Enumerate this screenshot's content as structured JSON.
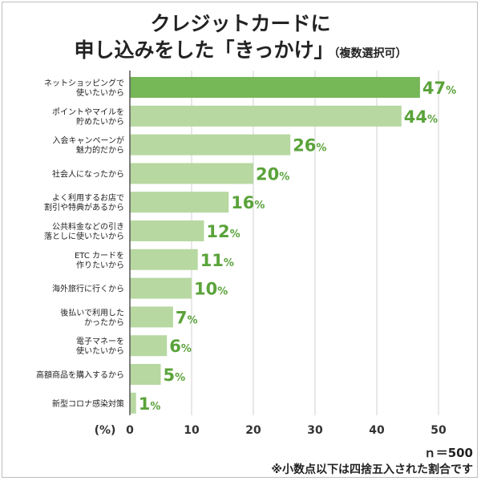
{
  "title": {
    "line1": "クレジットカードに",
    "line2": "申し込みをした「きっかけ」",
    "line2_note": "（複数選択可）"
  },
  "footer": {
    "sample_size": "ｎ＝500",
    "note": "※小数点以下は四捨五入された割合です"
  },
  "colors": {
    "highlight": "#76b758",
    "bar": "#b7d8a1",
    "label": "#5aa33a"
  },
  "chart_data": {
    "type": "bar",
    "orientation": "horizontal",
    "unit_label": "(%)",
    "xlim": [
      0,
      50
    ],
    "xticks": [
      0,
      10,
      20,
      30,
      40,
      50
    ],
    "categories": [
      [
        "ネットショッピングで",
        "使いたいから"
      ],
      [
        "ポイントやマイルを",
        "貯めたいから"
      ],
      [
        "入会キャンペーンが",
        "魅力的だから"
      ],
      [
        "社会人になったから"
      ],
      [
        "よく利用するお店で",
        "割引や特典があるから"
      ],
      [
        "公共料金などの引き",
        "落としに使いたいから"
      ],
      [
        "ETC カードを",
        "作りたいから"
      ],
      [
        "海外旅行に行くから"
      ],
      [
        "後払いで利用した",
        "かったから"
      ],
      [
        "電子マネーを",
        "使いたいから"
      ],
      [
        "高額商品を購入するから"
      ],
      [
        "新型コロナ感染対策"
      ]
    ],
    "values": [
      47,
      44,
      26,
      20,
      16,
      12,
      11,
      10,
      7,
      6,
      5,
      1
    ],
    "value_suffix": "%",
    "highlight_index": 0,
    "grid": true
  }
}
